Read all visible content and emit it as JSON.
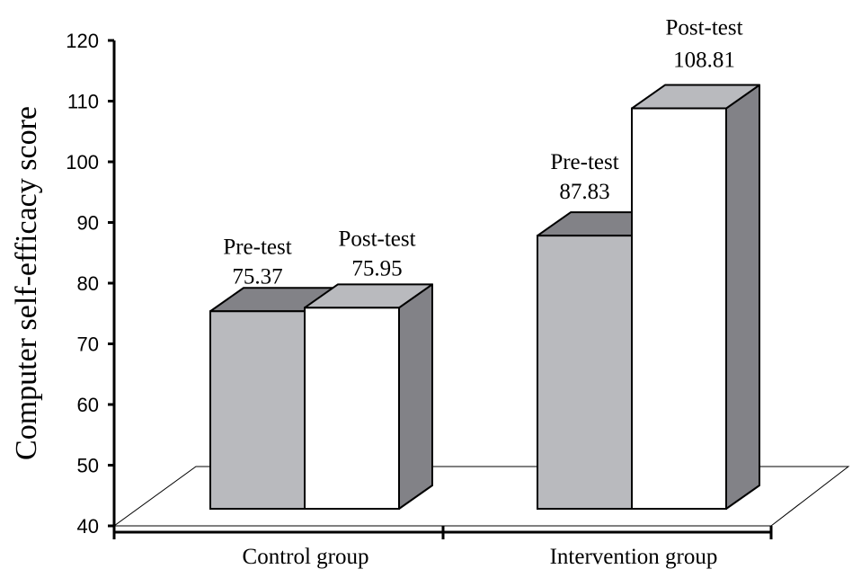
{
  "chart_data": {
    "type": "bar",
    "title": "",
    "xlabel": "",
    "ylabel": "Computer self-efficacy score",
    "ylim": [
      40,
      120
    ],
    "yticks": [
      40,
      50,
      60,
      70,
      80,
      90,
      100,
      110,
      120
    ],
    "grid": false,
    "categories": [
      "Control group",
      "Intervention group"
    ],
    "series": [
      {
        "label": "Pre-test",
        "values": [
          75.37,
          87.83
        ],
        "value_labels": [
          "75.37",
          "87.83"
        ],
        "color": "#b9babe"
      },
      {
        "label": "Post-test",
        "values": [
          75.95,
          108.81
        ],
        "value_labels": [
          "75.95",
          "108.81"
        ],
        "color": "#ffffff"
      }
    ],
    "colors": {
      "front_pre": "#b9babe",
      "front_post": "#ffffff",
      "top_pre": "#828287",
      "top_post": "#b9babe",
      "side": "#828287"
    }
  }
}
